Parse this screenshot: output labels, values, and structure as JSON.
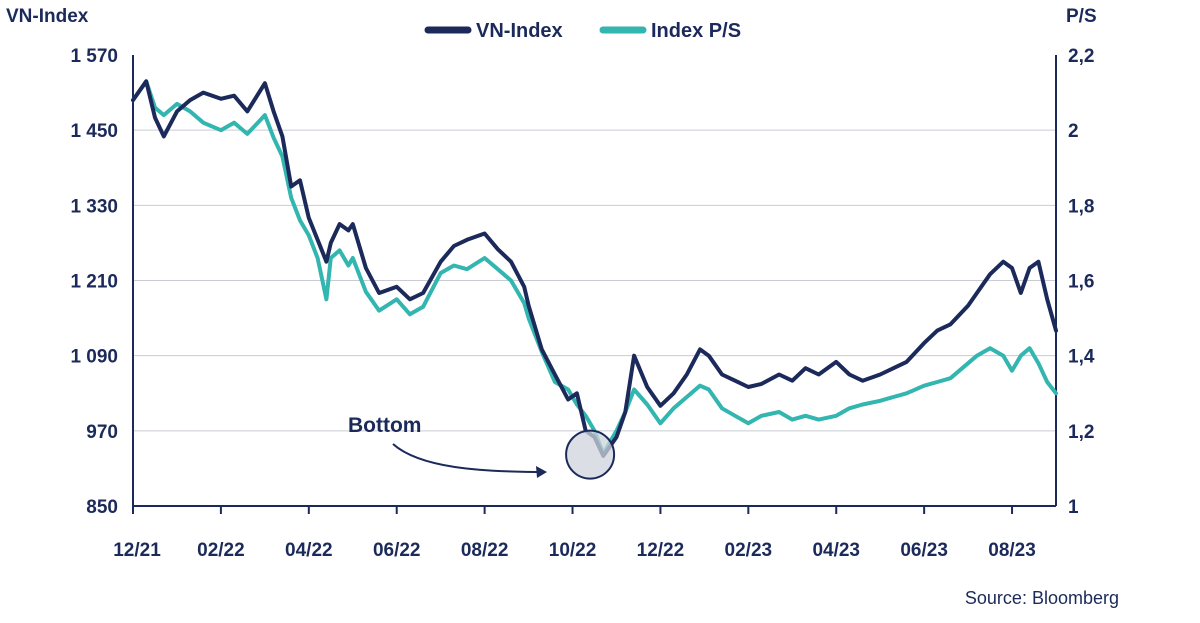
{
  "chart_data": {
    "type": "line",
    "title": "",
    "ylabel_left": "VN-Index",
    "ylabel_right": "P/S",
    "x_tick_labels": [
      "12/21",
      "02/22",
      "04/22",
      "06/22",
      "08/22",
      "10/22",
      "12/22",
      "02/23",
      "04/23",
      "06/23",
      "08/23"
    ],
    "x_range_months": [
      0,
      21
    ],
    "y_left_ticks": [
      "1 570",
      "1 450",
      "1 330",
      "1 210",
      "1 090",
      "970",
      "850"
    ],
    "y_left_values": [
      1570,
      1450,
      1330,
      1210,
      1090,
      970,
      850
    ],
    "y_left_range": [
      850,
      1570
    ],
    "y_right_ticks": [
      "2,2",
      "2",
      "1,8",
      "1,6",
      "1,4",
      "1,2",
      "1"
    ],
    "y_right_values": [
      2.2,
      2.0,
      1.8,
      1.6,
      1.4,
      1.2,
      1.0
    ],
    "y_right_range": [
      1.0,
      2.2
    ],
    "grid": "horizontal",
    "legend_position": "top-center",
    "series": [
      {
        "name": "VN-Index",
        "axis": "left",
        "color": "#1b2a5a",
        "x": [
          0,
          0.3,
          0.5,
          0.7,
          1,
          1.3,
          1.6,
          2,
          2.3,
          2.6,
          3,
          3.2,
          3.4,
          3.6,
          3.8,
          4,
          4.2,
          4.4,
          4.5,
          4.7,
          4.9,
          5,
          5.3,
          5.6,
          6,
          6.3,
          6.6,
          7,
          7.3,
          7.6,
          8,
          8.3,
          8.6,
          8.9,
          9,
          9.3,
          9.6,
          9.9,
          10.1,
          10.3,
          10.5,
          10.7,
          11,
          11.2,
          11.4,
          11.7,
          12,
          12.3,
          12.6,
          12.9,
          13.1,
          13.4,
          13.7,
          14,
          14.3,
          14.7,
          15,
          15.3,
          15.6,
          16,
          16.3,
          16.6,
          17,
          17.3,
          17.6,
          18,
          18.3,
          18.6,
          19,
          19.2,
          19.5,
          19.8,
          20,
          20.2,
          20.4,
          20.6,
          20.8,
          21
        ],
        "values": [
          1498,
          1528,
          1470,
          1440,
          1480,
          1498,
          1510,
          1500,
          1505,
          1480,
          1525,
          1480,
          1440,
          1360,
          1370,
          1310,
          1275,
          1240,
          1270,
          1300,
          1290,
          1300,
          1230,
          1190,
          1200,
          1180,
          1190,
          1240,
          1265,
          1275,
          1285,
          1260,
          1240,
          1200,
          1170,
          1100,
          1060,
          1020,
          1030,
          970,
          960,
          930,
          960,
          1000,
          1090,
          1040,
          1010,
          1030,
          1060,
          1100,
          1090,
          1060,
          1050,
          1040,
          1045,
          1060,
          1050,
          1070,
          1060,
          1080,
          1060,
          1050,
          1060,
          1070,
          1080,
          1110,
          1130,
          1140,
          1170,
          1190,
          1220,
          1240,
          1230,
          1190,
          1230,
          1240,
          1180,
          1130
        ]
      },
      {
        "name": "Index P/S",
        "axis": "right",
        "color": "#33b5b0",
        "x": [
          0,
          0.3,
          0.5,
          0.7,
          1,
          1.3,
          1.6,
          2,
          2.3,
          2.6,
          3,
          3.2,
          3.4,
          3.6,
          3.8,
          4,
          4.2,
          4.4,
          4.5,
          4.7,
          4.9,
          5,
          5.3,
          5.6,
          6,
          6.3,
          6.6,
          7,
          7.3,
          7.6,
          8,
          8.3,
          8.6,
          8.9,
          9,
          9.3,
          9.6,
          9.9,
          10.1,
          10.3,
          10.5,
          10.7,
          11,
          11.2,
          11.4,
          11.7,
          12,
          12.3,
          12.6,
          12.9,
          13.1,
          13.4,
          13.7,
          14,
          14.3,
          14.7,
          15,
          15.3,
          15.6,
          16,
          16.3,
          16.6,
          17,
          17.3,
          17.6,
          18,
          18.3,
          18.6,
          19,
          19.2,
          19.5,
          19.8,
          20,
          20.2,
          20.4,
          20.6,
          20.8,
          21
        ],
        "values": [
          2.08,
          2.13,
          2.06,
          2.04,
          2.07,
          2.05,
          2.02,
          2.0,
          2.02,
          1.99,
          2.04,
          1.98,
          1.93,
          1.82,
          1.76,
          1.72,
          1.66,
          1.55,
          1.66,
          1.68,
          1.64,
          1.66,
          1.57,
          1.52,
          1.55,
          1.51,
          1.53,
          1.62,
          1.64,
          1.63,
          1.66,
          1.63,
          1.6,
          1.54,
          1.5,
          1.41,
          1.33,
          1.31,
          1.27,
          1.24,
          1.2,
          1.14,
          1.2,
          1.25,
          1.31,
          1.27,
          1.22,
          1.26,
          1.29,
          1.32,
          1.31,
          1.26,
          1.24,
          1.22,
          1.24,
          1.25,
          1.23,
          1.24,
          1.23,
          1.24,
          1.26,
          1.27,
          1.28,
          1.29,
          1.3,
          1.32,
          1.33,
          1.34,
          1.38,
          1.4,
          1.42,
          1.4,
          1.36,
          1.4,
          1.42,
          1.38,
          1.33,
          1.3
        ]
      }
    ],
    "annotations": [
      {
        "text": "Bottom",
        "x": 10.4,
        "y_left": 932
      }
    ],
    "source": "Source: Bloomberg"
  }
}
